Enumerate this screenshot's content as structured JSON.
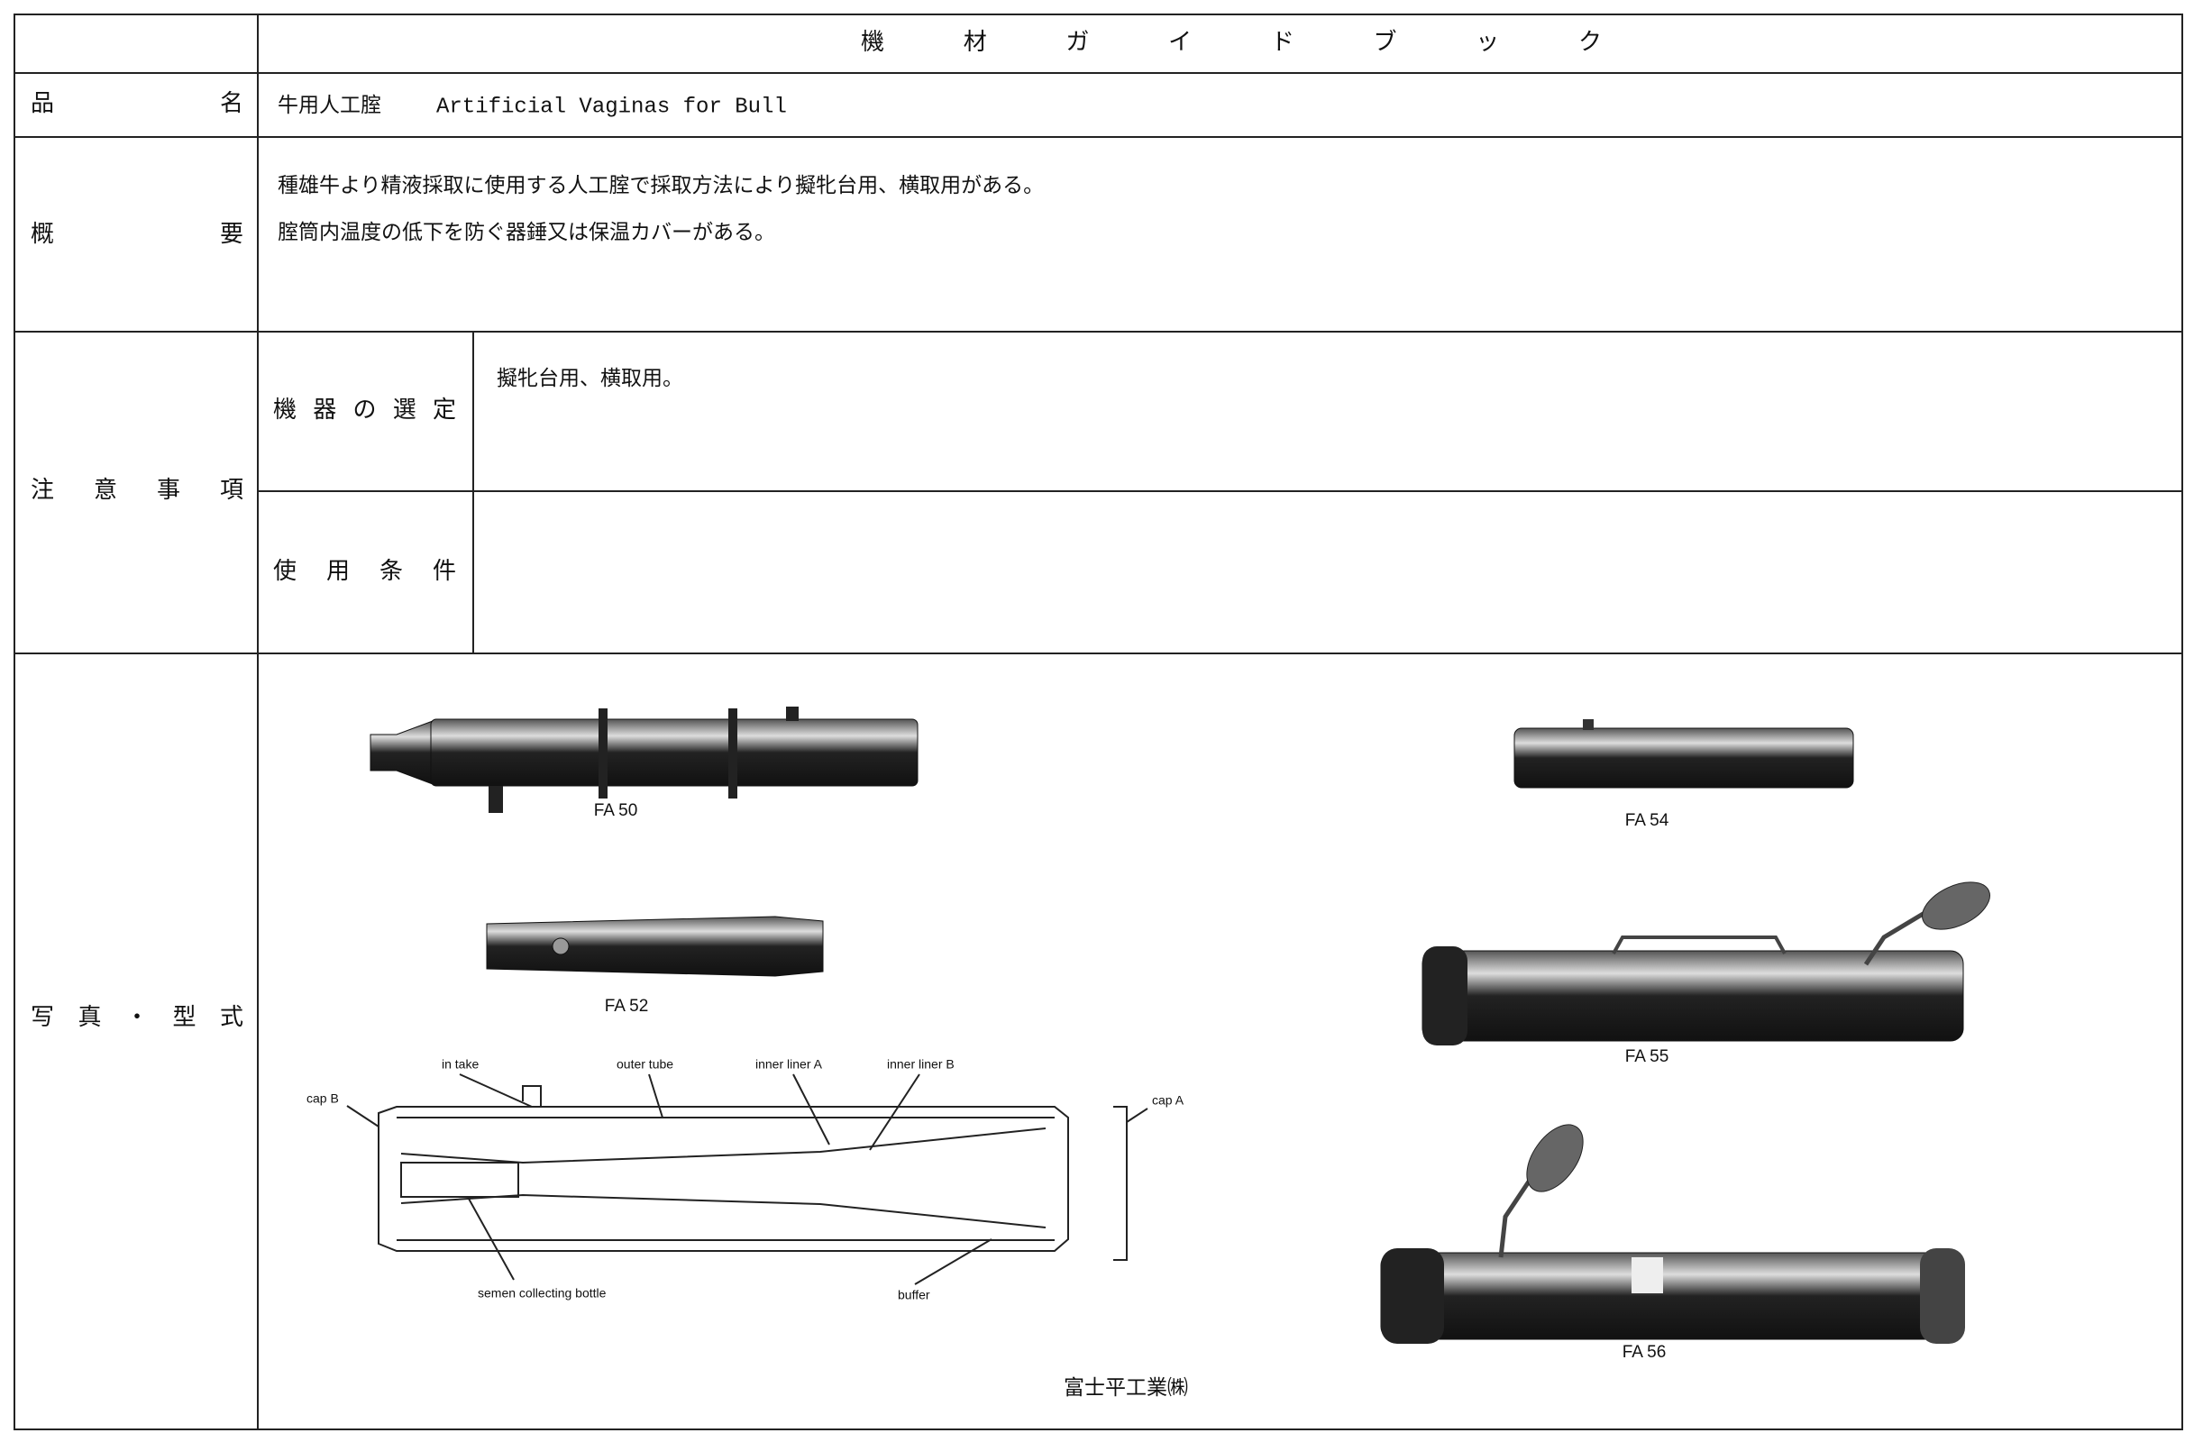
{
  "header": {
    "title": "機材ガイドブック"
  },
  "name": {
    "label": "品名",
    "value_ja": "牛用人工腟",
    "value_en": "Artificial Vaginas for Bull"
  },
  "overview": {
    "label": "概要",
    "lines": [
      "種雄牛より精液採取に使用する人工腟で採取方法により擬牝台用、横取用がある。",
      "腟筒内温度の低下を防ぐ器錘又は保温カバーがある。"
    ]
  },
  "notes": {
    "label": "注意事項",
    "selection": {
      "label": "機器の選定",
      "value": "擬牝台用、横取用。"
    },
    "conditions": {
      "label": "使用条件"
    }
  },
  "photos": {
    "label": "写真・型式",
    "captions": [
      "FA 50",
      "FA 52",
      "FA 54",
      "FA 55",
      "FA 56"
    ],
    "diagram_labels": [
      "in take",
      "outer tube",
      "inner liner A",
      "inner liner B",
      "cap B",
      "cap A",
      "semen collecting bottle",
      "buffer"
    ],
    "manufacturer": "富士平工業㈱"
  }
}
